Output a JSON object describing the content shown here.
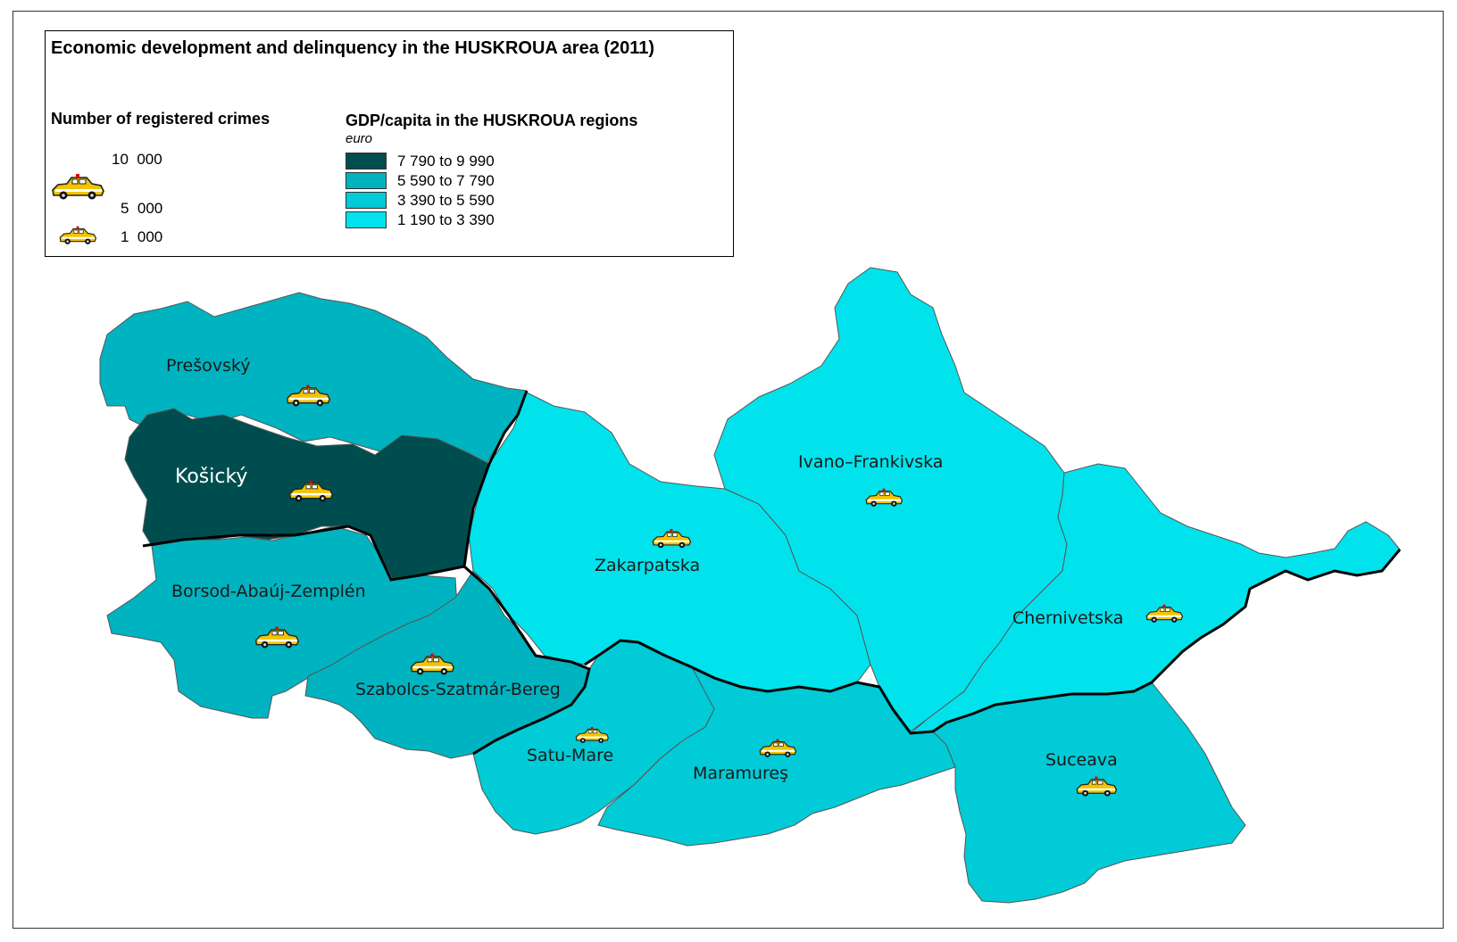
{
  "title": "Economic development and delinquency in the HUSKROUA area (2011)",
  "legend": {
    "crimes_heading": "Number of registered crimes",
    "crime_scale": [
      {
        "label": "10  000",
        "value": 10000
      },
      {
        "label": "5  000",
        "value": 5000
      },
      {
        "label": "1  000",
        "value": 1000
      }
    ],
    "gdp_heading": "GDP/capita in the HUSKROUA regions",
    "gdp_unit": "euro",
    "gdp_classes": [
      {
        "label": "7 790 to 9 990",
        "color": "#004d50"
      },
      {
        "label": "5 590 to 7 790",
        "color": "#00b3c0"
      },
      {
        "label": "3 390 to 5 590",
        "color": "#00cbd6"
      },
      {
        "label": "1 190 to 3 390",
        "color": "#00e3ec"
      }
    ]
  },
  "regions": [
    {
      "name": "Prešovský",
      "gdp_class": 1,
      "crimes": 7000
    },
    {
      "name": "Košický",
      "gdp_class": 0,
      "crimes": 7000
    },
    {
      "name": "Borsod-Abaúj-Zemplén",
      "gdp_class": 1,
      "crimes": 7000
    },
    {
      "name": "Szabolcs-Szatmár-Bereg",
      "gdp_class": 1,
      "crimes": 7000
    },
    {
      "name": "Zakarpatska",
      "gdp_class": 3,
      "crimes": 5500
    },
    {
      "name": "Ivano–Frankivska",
      "gdp_class": 3,
      "crimes": 5000
    },
    {
      "name": "Chernivetska",
      "gdp_class": 3,
      "crimes": 5000
    },
    {
      "name": "Satu-Mare",
      "gdp_class": 2,
      "crimes": 4000
    },
    {
      "name": "Maramureş",
      "gdp_class": 2,
      "crimes": 5000
    },
    {
      "name": "Suceava",
      "gdp_class": 2,
      "crimes": 6000
    }
  ],
  "icon": "police-car-icon"
}
